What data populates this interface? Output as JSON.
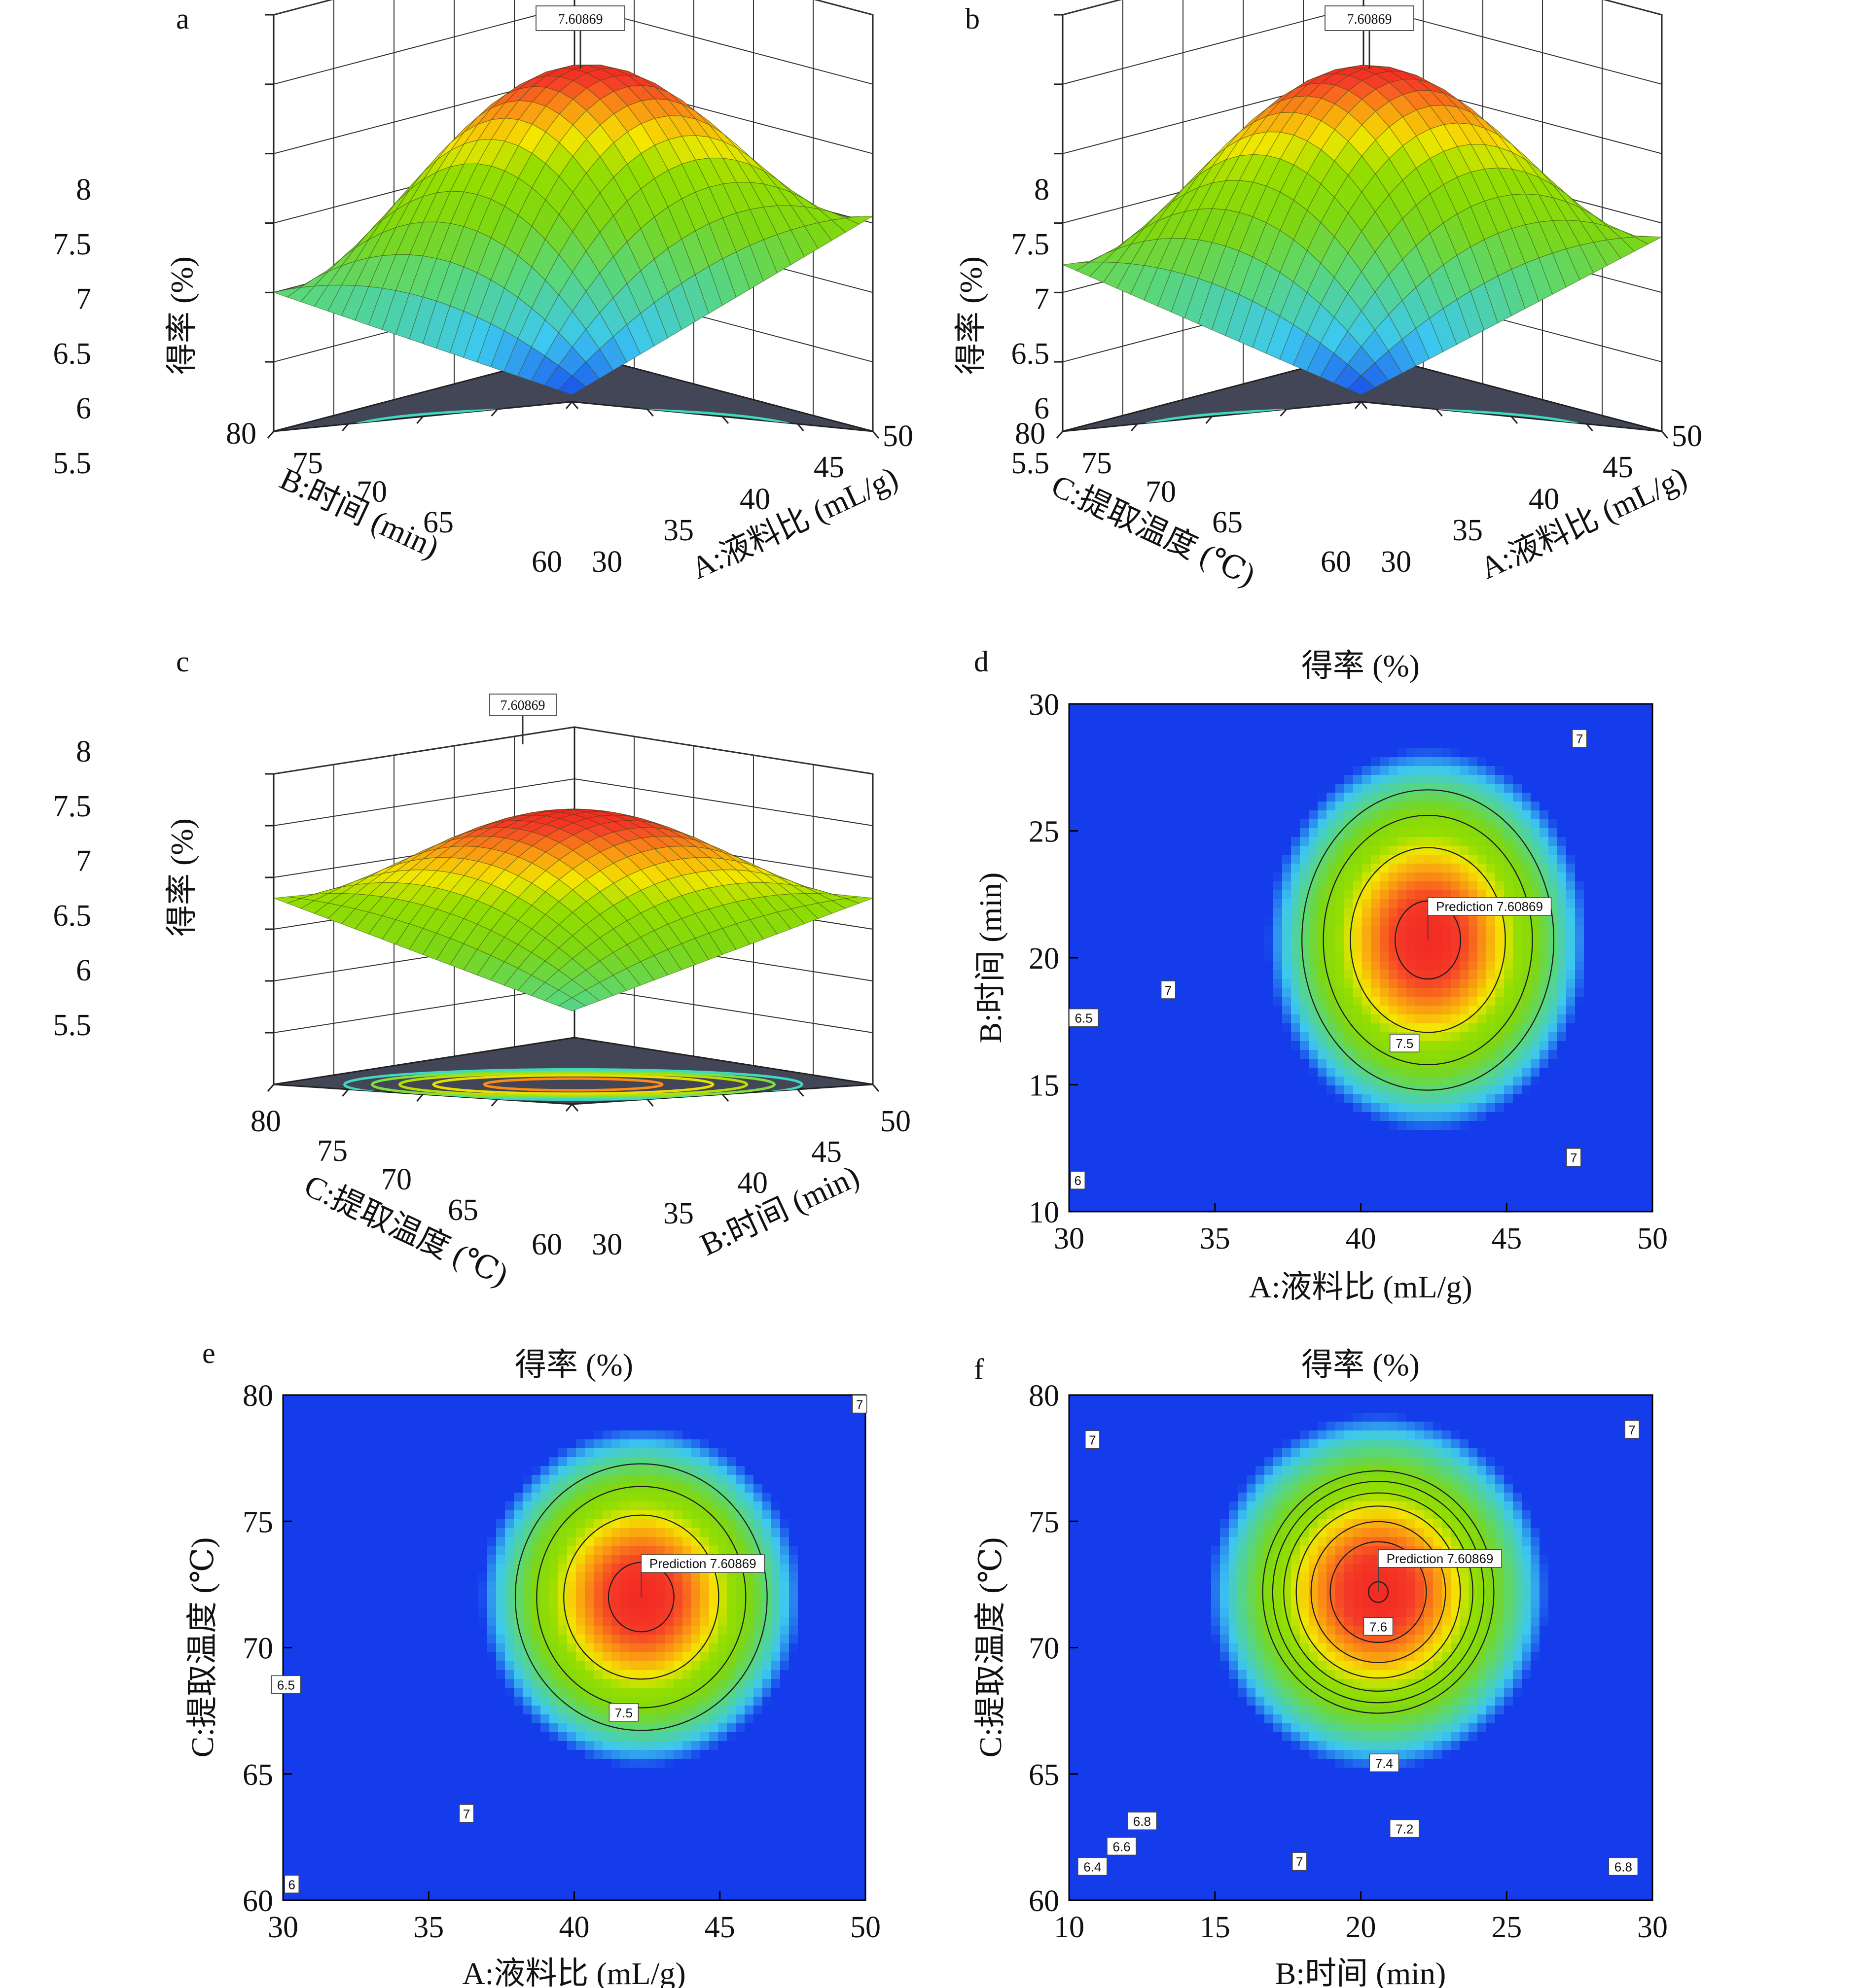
{
  "chart_data": [
    {
      "panel": "a",
      "type": "surface3d",
      "x_axis": {
        "label": "A:液料比 (mL/g)",
        "ticks": [
          30,
          35,
          40,
          45,
          50
        ]
      },
      "y_axis": {
        "label": "B:时间 (min)",
        "ticks": [
          60,
          65,
          70,
          75,
          80
        ]
      },
      "z_axis": {
        "label": "得率 (%)",
        "ticks": [
          5.5,
          6.0,
          6.5,
          7.0,
          7.5,
          8.0
        ],
        "range": [
          5.0,
          8.0
        ]
      },
      "max_flag": "7.60869",
      "corner_values": {
        "near": 5.05,
        "left": 6.0,
        "right": 6.55,
        "far": 6.7
      }
    },
    {
      "panel": "b",
      "type": "surface3d",
      "x_axis": {
        "label": "A:液料比 (mL/g)",
        "ticks": [
          30,
          35,
          40,
          45,
          50
        ]
      },
      "y_axis": {
        "label": "C:提取温度 (℃)",
        "ticks": [
          60,
          65,
          70,
          75,
          80
        ]
      },
      "z_axis": {
        "label": "得率 (%)",
        "ticks": [
          5.5,
          6.0,
          6.5,
          7.0,
          7.5,
          8.0
        ],
        "range": [
          5.0,
          8.0
        ]
      },
      "max_flag": "7.60869",
      "corner_values": {
        "near": 5.05,
        "left": 6.2,
        "right": 6.4,
        "far": 6.7
      }
    },
    {
      "panel": "c",
      "type": "surface3d",
      "x_axis": {
        "label": "B:时间 (min)",
        "ticks": [
          30,
          35,
          40,
          45,
          50
        ]
      },
      "y_axis": {
        "label": "C:提取温度 (℃)",
        "ticks": [
          60,
          65,
          70,
          75,
          80
        ]
      },
      "z_axis": {
        "label": "得率 (%)",
        "ticks": [
          5.5,
          6.0,
          6.5,
          7.0,
          7.5,
          8.0
        ],
        "range": [
          5.0,
          8.0
        ]
      },
      "max_flag": "7.60869",
      "corner_values": {
        "near": 5.9,
        "left": 6.8,
        "right": 6.8,
        "far": 6.9
      }
    },
    {
      "panel": "d",
      "type": "contour",
      "title": "得率 (%)",
      "x_axis": {
        "label": "A:液料比 (mL/g)",
        "ticks": [
          30,
          35,
          40,
          45,
          50
        ],
        "range": [
          30,
          50
        ]
      },
      "y_axis": {
        "label": "B:时间 (min)",
        "ticks": [
          10,
          15,
          20,
          25,
          30
        ],
        "range": [
          10,
          30
        ]
      },
      "optimum": {
        "x": 42.3,
        "y": 20.7,
        "value": 7.60869
      },
      "prediction_label": "Prediction 7.60869",
      "contour_levels": [
        6,
        6.5,
        7,
        7.5
      ],
      "contour_labels": [
        {
          "text": "7",
          "x": 47.5,
          "y": 28.6
        },
        {
          "text": "7",
          "x": 33.4,
          "y": 18.7
        },
        {
          "text": "6.5",
          "x": 30.5,
          "y": 17.6
        },
        {
          "text": "7.5",
          "x": 41.5,
          "y": 16.6
        },
        {
          "text": "7",
          "x": 47.3,
          "y": 12.1
        },
        {
          "text": "6",
          "x": 30.3,
          "y": 11.2
        }
      ]
    },
    {
      "panel": "e",
      "type": "contour",
      "title": "得率 (%)",
      "x_axis": {
        "label": "A:液料比 (mL/g)",
        "ticks": [
          30,
          35,
          40,
          45,
          50
        ],
        "range": [
          30,
          50
        ]
      },
      "y_axis": {
        "label": "C:提取温度 (℃)",
        "ticks": [
          60,
          65,
          70,
          75,
          80
        ],
        "range": [
          60,
          80
        ]
      },
      "optimum": {
        "x": 42.3,
        "y": 72.0,
        "value": 7.60869
      },
      "prediction_label": "Prediction 7.60869",
      "contour_levels": [
        6,
        6.5,
        7,
        7.5
      ],
      "contour_labels": [
        {
          "text": "7",
          "x": 49.8,
          "y": 79.6
        },
        {
          "text": "6.5",
          "x": 30.1,
          "y": 68.5
        },
        {
          "text": "7.5",
          "x": 41.7,
          "y": 67.4
        },
        {
          "text": "7",
          "x": 36.3,
          "y": 63.4
        },
        {
          "text": "6",
          "x": 30.3,
          "y": 60.6
        }
      ]
    },
    {
      "panel": "f",
      "type": "contour",
      "title": "得率 (%)",
      "x_axis": {
        "label": "B:时间 (min)",
        "ticks": [
          10,
          15,
          20,
          25,
          30
        ],
        "range": [
          10,
          30
        ]
      },
      "y_axis": {
        "label": "C:提取温度 (℃)",
        "ticks": [
          60,
          65,
          70,
          75,
          80
        ],
        "range": [
          60,
          80
        ]
      },
      "optimum": {
        "x": 20.6,
        "y": 72.2,
        "value": 7.60869
      },
      "prediction_label": "Prediction 7.60869",
      "contour_levels": [
        6.4,
        6.6,
        6.8,
        7,
        7.2,
        7.4,
        7.6
      ],
      "contour_labels": [
        {
          "text": "7",
          "x": 10.8,
          "y": 78.2
        },
        {
          "text": "7",
          "x": 29.3,
          "y": 78.6
        },
        {
          "text": "7.6",
          "x": 20.6,
          "y": 70.8
        },
        {
          "text": "7.4",
          "x": 20.8,
          "y": 65.4
        },
        {
          "text": "7.2",
          "x": 21.5,
          "y": 62.8
        },
        {
          "text": "6.8",
          "x": 12.5,
          "y": 63.1
        },
        {
          "text": "6.6",
          "x": 11.8,
          "y": 62.1
        },
        {
          "text": "7",
          "x": 17.9,
          "y": 61.5
        },
        {
          "text": "6.4",
          "x": 10.8,
          "y": 61.3
        },
        {
          "text": "6.8",
          "x": 29.0,
          "y": 61.3
        }
      ]
    }
  ]
}
